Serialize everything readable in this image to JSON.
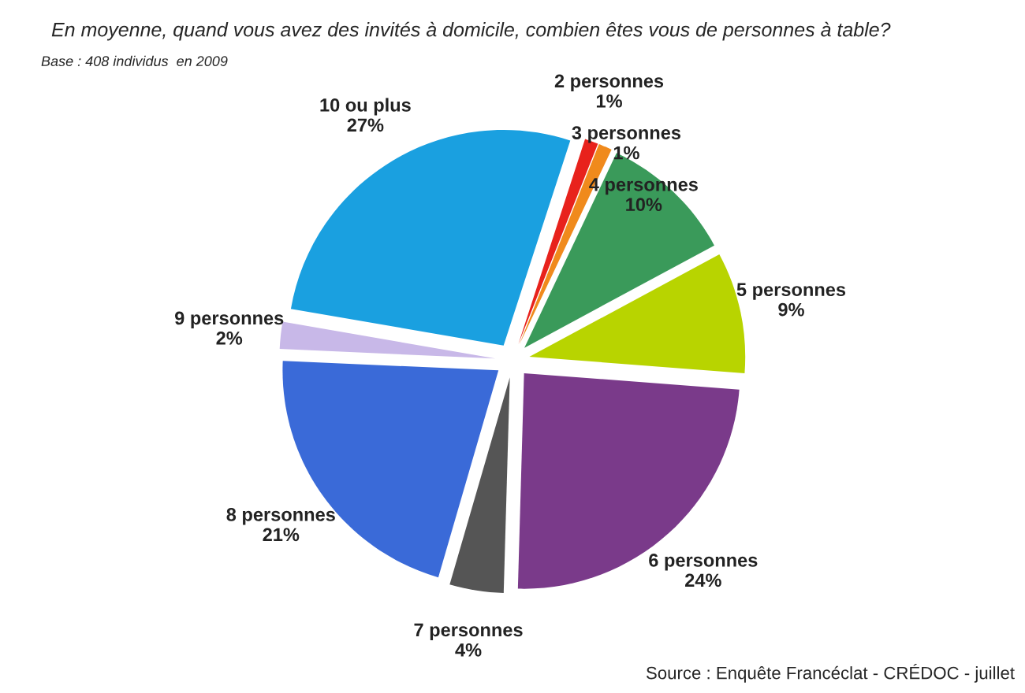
{
  "chart_data": {
    "type": "pie",
    "title": "En moyenne, quand vous avez des invités à domicile, combien êtes vous de personnes à table?",
    "subtitle": "Base : 408 individus  en 2009",
    "annotations": [
      "Source : Enquête Francéclat - CRÉDOC - juillet"
    ],
    "categories": [
      "2 personnes",
      "3 personnes",
      "4 personnes",
      "5 personnes",
      "6 personnes",
      "7 personnes",
      "8 personnes",
      "9 personnes",
      "10 ou plus"
    ],
    "values": [
      1,
      1,
      10,
      9,
      24,
      4,
      21,
      2,
      27
    ],
    "value_labels": [
      "1%",
      "1%",
      "10%",
      "9%",
      "24%",
      "4%",
      "21%",
      "2%",
      "27%"
    ],
    "colors": [
      "#e8221c",
      "#f08a1c",
      "#3a9a5a",
      "#b8d400",
      "#7a3a8a",
      "#555555",
      "#3a6ad8",
      "#c8b8e8",
      "#1aa0e0"
    ],
    "legend": false
  }
}
